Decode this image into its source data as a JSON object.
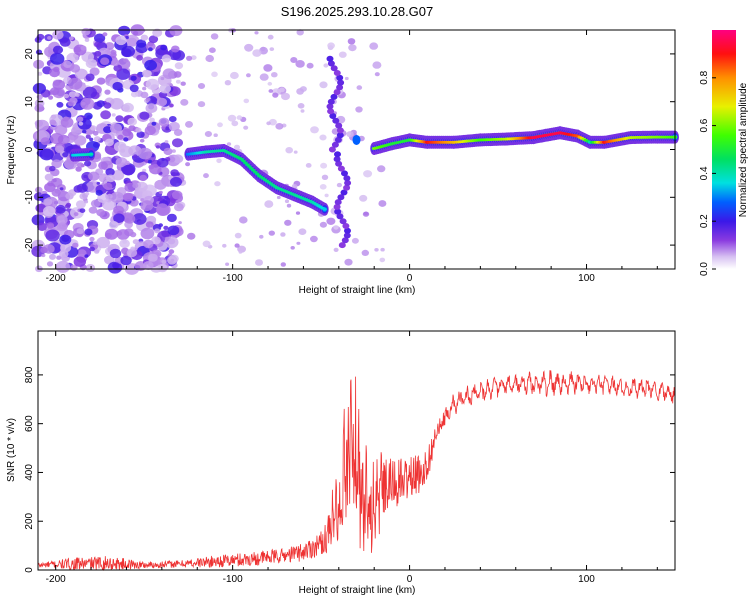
{
  "title": "S196.2025.293.10.28.G07",
  "chart_data": [
    {
      "type": "heatmap",
      "name": "spectrogram",
      "xlabel": "Height of straight line (km)",
      "ylabel": "Frequency (Hz)",
      "xlim": [
        -210,
        150
      ],
      "ylim": [
        -25,
        25
      ],
      "xticks": [
        -200,
        -100,
        0,
        100
      ],
      "yticks": [
        -20,
        -10,
        0,
        10,
        20
      ],
      "colorbar": {
        "label": "Normalized spectral amplitude",
        "range": [
          0,
          1
        ],
        "ticks": [
          0.0,
          0.2,
          0.4,
          0.6,
          0.8
        ]
      },
      "ridge": [
        {
          "x": -190,
          "y": -1.2,
          "amp": 0.35
        },
        {
          "x": -180,
          "y": -1.0,
          "amp": 0.4
        },
        {
          "x": -125,
          "y": -1.0,
          "amp": 0.3
        },
        {
          "x": -115,
          "y": -0.5,
          "amp": 0.4
        },
        {
          "x": -105,
          "y": -0.2,
          "amp": 0.42
        },
        {
          "x": -95,
          "y": -2.0,
          "amp": 0.45
        },
        {
          "x": -85,
          "y": -5.5,
          "amp": 0.45
        },
        {
          "x": -75,
          "y": -8.0,
          "amp": 0.42
        },
        {
          "x": -65,
          "y": -9.5,
          "amp": 0.42
        },
        {
          "x": -55,
          "y": -11.0,
          "amp": 0.4
        },
        {
          "x": -48,
          "y": -12.5,
          "amp": 0.35
        },
        {
          "x": -30,
          "y": 2.0,
          "amp": 0.3
        },
        {
          "x": -20,
          "y": 0.2,
          "amp": 0.6
        },
        {
          "x": -10,
          "y": 1.2,
          "amp": 0.5
        },
        {
          "x": 0,
          "y": 2.0,
          "amp": 0.5
        },
        {
          "x": 10,
          "y": 1.5,
          "amp": 0.9
        },
        {
          "x": 25,
          "y": 1.5,
          "amp": 0.75
        },
        {
          "x": 40,
          "y": 2.0,
          "amp": 0.55
        },
        {
          "x": 55,
          "y": 2.2,
          "amp": 0.65
        },
        {
          "x": 70,
          "y": 2.5,
          "amp": 0.95
        },
        {
          "x": 85,
          "y": 3.5,
          "amp": 0.95
        },
        {
          "x": 95,
          "y": 2.8,
          "amp": 0.85
        },
        {
          "x": 102,
          "y": 1.5,
          "amp": 0.4
        },
        {
          "x": 110,
          "y": 1.5,
          "amp": 0.9
        },
        {
          "x": 125,
          "y": 2.5,
          "amp": 0.65
        },
        {
          "x": 140,
          "y": 2.6,
          "amp": 0.6
        },
        {
          "x": 150,
          "y": 2.6,
          "amp": 0.55
        }
      ]
    },
    {
      "type": "line",
      "name": "snr",
      "xlabel": "Height of straight line (km)",
      "ylabel": "SNR (10 * v/v)",
      "xlim": [
        -210,
        150
      ],
      "ylim": [
        0,
        980
      ],
      "xticks": [
        -200,
        -100,
        0,
        100
      ],
      "yticks": [
        0,
        200,
        400,
        600,
        800
      ],
      "series": [
        {
          "name": "SNR",
          "color": "#ee3333",
          "x": [
            -210,
            -190,
            -170,
            -150,
            -130,
            -110,
            -90,
            -70,
            -60,
            -50,
            -45,
            -40,
            -36,
            -33,
            -30,
            -27,
            -24,
            -20,
            -15,
            -10,
            -5,
            0,
            5,
            10,
            15,
            20,
            25,
            30,
            35,
            40,
            50,
            60,
            70,
            80,
            90,
            100,
            110,
            120,
            130,
            140,
            150
          ],
          "y": [
            20,
            25,
            28,
            20,
            25,
            35,
            45,
            60,
            75,
            110,
            160,
            230,
            380,
            560,
            430,
            330,
            240,
            300,
            330,
            350,
            360,
            380,
            390,
            430,
            560,
            620,
            680,
            700,
            720,
            735,
            750,
            760,
            765,
            765,
            770,
            760,
            760,
            750,
            745,
            740,
            720
          ],
          "noise_amplitude": [
            10,
            25,
            30,
            15,
            15,
            25,
            30,
            30,
            40,
            50,
            80,
            130,
            260,
            200,
            260,
            170,
            160,
            110,
            120,
            110,
            100,
            90,
            80,
            70,
            40,
            35,
            45,
            45,
            45,
            45,
            40,
            40,
            45,
            50,
            50,
            40,
            40,
            40,
            40,
            40,
            40
          ]
        }
      ]
    }
  ]
}
